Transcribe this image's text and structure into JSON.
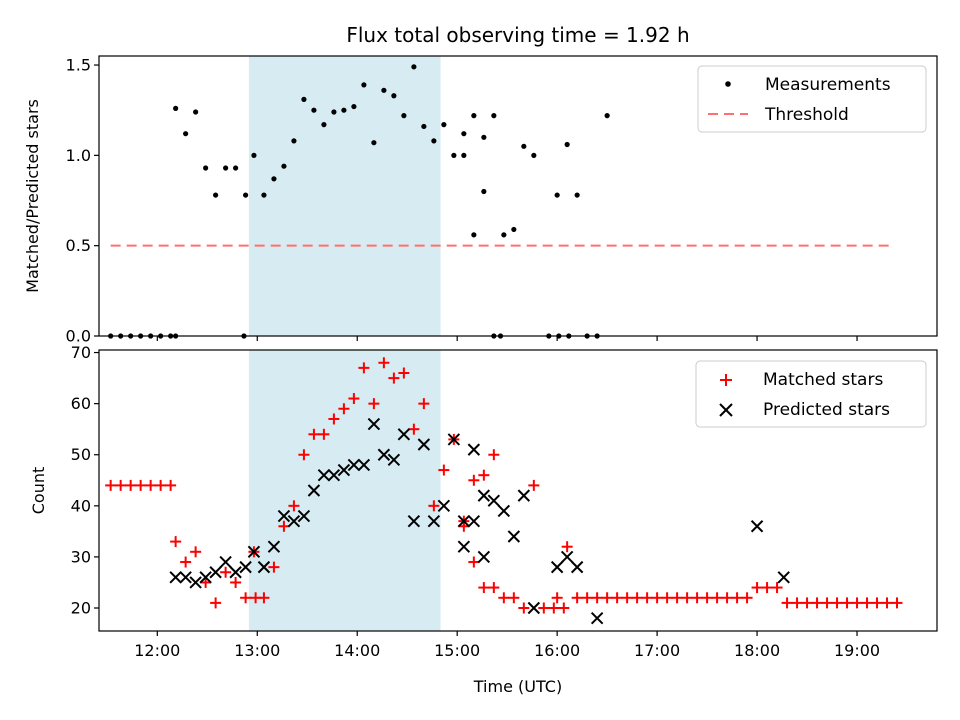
{
  "chart_data": [
    {
      "type": "scatter",
      "title": "Flux total observing time = 1.92 h",
      "xlabel": "",
      "ylabel": "Matched/Predicted stars",
      "ylim": [
        0,
        1.55
      ],
      "xlim": [
        "11:25",
        "19:48"
      ],
      "yticks": [
        0.0,
        0.5,
        1.0,
        1.5
      ],
      "ytick_labels": [
        "0.0",
        "0.5",
        "1.0",
        "1.5"
      ],
      "shaded_interval": {
        "start": "12:55",
        "end": "14:50",
        "color": "#add8e6"
      },
      "legend": {
        "position": "top-right",
        "entries": [
          "Measurements",
          "Threshold"
        ]
      },
      "series": [
        {
          "name": "Measurements",
          "marker": "dot",
          "color": "#000000",
          "points": [
            [
              "11:32",
              0
            ],
            [
              "11:38",
              0
            ],
            [
              "11:44",
              0
            ],
            [
              "11:50",
              0
            ],
            [
              "11:56",
              0
            ],
            [
              "12:02",
              0
            ],
            [
              "12:08",
              0
            ],
            [
              "12:11",
              0
            ],
            [
              "12:11",
              1.26
            ],
            [
              "12:17",
              1.12
            ],
            [
              "12:23",
              1.24
            ],
            [
              "12:29",
              0.93
            ],
            [
              "12:35",
              0.78
            ],
            [
              "12:41",
              0.93
            ],
            [
              "12:47",
              0.93
            ],
            [
              "12:53",
              0.78
            ],
            [
              "12:52",
              0
            ],
            [
              "12:58",
              1.0
            ],
            [
              "13:04",
              0.78
            ],
            [
              "13:10",
              0.87
            ],
            [
              "13:16",
              0.94
            ],
            [
              "13:22",
              1.08
            ],
            [
              "13:28",
              1.31
            ],
            [
              "13:34",
              1.25
            ],
            [
              "13:40",
              1.17
            ],
            [
              "13:46",
              1.24
            ],
            [
              "13:52",
              1.25
            ],
            [
              "13:58",
              1.27
            ],
            [
              "14:04",
              1.39
            ],
            [
              "14:10",
              1.07
            ],
            [
              "14:16",
              1.36
            ],
            [
              "14:22",
              1.33
            ],
            [
              "14:28",
              1.22
            ],
            [
              "14:34",
              1.49
            ],
            [
              "14:40",
              1.16
            ],
            [
              "14:46",
              1.08
            ],
            [
              "14:52",
              1.17
            ],
            [
              "14:58",
              1.0
            ],
            [
              "15:04",
              1.12
            ],
            [
              "15:10",
              0.56
            ],
            [
              "15:16",
              0.8
            ],
            [
              "15:22",
              0
            ],
            [
              "15:04",
              1.0
            ],
            [
              "15:10",
              1.22
            ],
            [
              "15:16",
              1.1
            ],
            [
              "15:22",
              1.22
            ],
            [
              "15:28",
              0.56
            ],
            [
              "15:26",
              0
            ],
            [
              "15:34",
              0.59
            ],
            [
              "15:40",
              1.05
            ],
            [
              "15:46",
              1.0
            ],
            [
              "15:55",
              0
            ],
            [
              "16:01",
              0
            ],
            [
              "16:07",
              0
            ],
            [
              "16:00",
              0.78
            ],
            [
              "16:06",
              1.06
            ],
            [
              "16:12",
              0.78
            ],
            [
              "16:18",
              0
            ],
            [
              "16:24",
              0
            ],
            [
              "16:30",
              1.22
            ]
          ]
        },
        {
          "name": "Threshold",
          "line_style": "dashed",
          "color": "#ff6f6f",
          "x": [
            "11:32",
            "19:22"
          ],
          "y": [
            0.5,
            0.5
          ]
        }
      ]
    },
    {
      "type": "scatter",
      "title": "",
      "xlabel": "Time (UTC)",
      "ylabel": "Count",
      "ylim": [
        15.5,
        70.5
      ],
      "xlim": [
        "11:25",
        "19:48"
      ],
      "yticks": [
        20,
        30,
        40,
        50,
        60,
        70
      ],
      "ytick_labels": [
        "20",
        "30",
        "40",
        "50",
        "60",
        "70"
      ],
      "xticks": [
        "12:00",
        "13:00",
        "14:00",
        "15:00",
        "16:00",
        "17:00",
        "18:00",
        "19:00"
      ],
      "shaded_interval": {
        "start": "12:55",
        "end": "14:50",
        "color": "#add8e6"
      },
      "legend": {
        "position": "top-right",
        "entries": [
          "Matched stars",
          "Predicted stars"
        ]
      },
      "series": [
        {
          "name": "Matched stars",
          "marker": "plus",
          "color": "#ff0000",
          "points": [
            [
              "11:32",
              44
            ],
            [
              "11:38",
              44
            ],
            [
              "11:44",
              44
            ],
            [
              "11:50",
              44
            ],
            [
              "11:56",
              44
            ],
            [
              "12:02",
              44
            ],
            [
              "12:08",
              44
            ],
            [
              "12:11",
              33
            ],
            [
              "12:17",
              29
            ],
            [
              "12:23",
              31
            ],
            [
              "12:29",
              25
            ],
            [
              "12:35",
              21
            ],
            [
              "12:41",
              27
            ],
            [
              "12:47",
              25
            ],
            [
              "12:53",
              22
            ],
            [
              "12:59",
              22
            ],
            [
              "12:58",
              31
            ],
            [
              "13:04",
              22
            ],
            [
              "13:10",
              28
            ],
            [
              "13:16",
              36
            ],
            [
              "13:22",
              40
            ],
            [
              "13:28",
              50
            ],
            [
              "13:34",
              54
            ],
            [
              "13:40",
              54
            ],
            [
              "13:46",
              57
            ],
            [
              "13:52",
              59
            ],
            [
              "13:58",
              61
            ],
            [
              "14:04",
              67
            ],
            [
              "14:10",
              60
            ],
            [
              "14:16",
              68
            ],
            [
              "14:22",
              65
            ],
            [
              "14:28",
              66
            ],
            [
              "14:34",
              55
            ],
            [
              "14:40",
              60
            ],
            [
              "14:46",
              40
            ],
            [
              "14:52",
              47
            ],
            [
              "14:58",
              53
            ],
            [
              "15:04",
              36
            ],
            [
              "15:10",
              29
            ],
            [
              "15:16",
              24
            ],
            [
              "15:22",
              24
            ],
            [
              "15:04",
              37
            ],
            [
              "15:10",
              45
            ],
            [
              "15:16",
              46
            ],
            [
              "15:22",
              50
            ],
            [
              "15:28",
              22
            ],
            [
              "15:34",
              22
            ],
            [
              "15:40",
              20
            ],
            [
              "15:46",
              44
            ],
            [
              "15:52",
              20
            ],
            [
              "15:58",
              20
            ],
            [
              "16:04",
              20
            ],
            [
              "16:00",
              22
            ],
            [
              "16:06",
              32
            ],
            [
              "16:12",
              22
            ],
            [
              "16:18",
              22
            ],
            [
              "16:24",
              22
            ],
            [
              "16:30",
              22
            ],
            [
              "16:36",
              22
            ],
            [
              "16:42",
              22
            ],
            [
              "16:48",
              22
            ],
            [
              "16:54",
              22
            ],
            [
              "17:00",
              22
            ],
            [
              "17:06",
              22
            ],
            [
              "17:12",
              22
            ],
            [
              "17:18",
              22
            ],
            [
              "17:24",
              22
            ],
            [
              "17:30",
              22
            ],
            [
              "17:36",
              22
            ],
            [
              "17:42",
              22
            ],
            [
              "17:48",
              22
            ],
            [
              "17:54",
              22
            ],
            [
              "18:00",
              24
            ],
            [
              "18:06",
              24
            ],
            [
              "18:12",
              24
            ],
            [
              "18:18",
              21
            ],
            [
              "18:24",
              21
            ],
            [
              "18:30",
              21
            ],
            [
              "18:36",
              21
            ],
            [
              "18:42",
              21
            ],
            [
              "18:48",
              21
            ],
            [
              "18:54",
              21
            ],
            [
              "19:00",
              21
            ],
            [
              "19:06",
              21
            ],
            [
              "19:12",
              21
            ],
            [
              "19:18",
              21
            ],
            [
              "19:24",
              21
            ]
          ]
        },
        {
          "name": "Predicted stars",
          "marker": "x",
          "color": "#000000",
          "points": [
            [
              "12:11",
              26
            ],
            [
              "12:17",
              26
            ],
            [
              "12:23",
              25
            ],
            [
              "12:29",
              26
            ],
            [
              "12:35",
              27
            ],
            [
              "12:41",
              29
            ],
            [
              "12:47",
              27
            ],
            [
              "12:53",
              28
            ],
            [
              "12:58",
              31
            ],
            [
              "13:04",
              28
            ],
            [
              "13:10",
              32
            ],
            [
              "13:16",
              38
            ],
            [
              "13:22",
              37
            ],
            [
              "13:28",
              38
            ],
            [
              "13:34",
              43
            ],
            [
              "13:40",
              46
            ],
            [
              "13:46",
              46
            ],
            [
              "13:52",
              47
            ],
            [
              "13:58",
              48
            ],
            [
              "14:04",
              48
            ],
            [
              "14:10",
              56
            ],
            [
              "14:16",
              50
            ],
            [
              "14:22",
              49
            ],
            [
              "14:28",
              54
            ],
            [
              "14:34",
              37
            ],
            [
              "14:40",
              52
            ],
            [
              "14:46",
              37
            ],
            [
              "14:52",
              40
            ],
            [
              "14:58",
              53
            ],
            [
              "15:04",
              32
            ],
            [
              "15:10",
              51
            ],
            [
              "15:16",
              30
            ],
            [
              "15:04",
              37
            ],
            [
              "15:10",
              37
            ],
            [
              "15:16",
              42
            ],
            [
              "15:22",
              41
            ],
            [
              "15:28",
              39
            ],
            [
              "15:34",
              34
            ],
            [
              "15:40",
              42
            ],
            [
              "15:46",
              20
            ],
            [
              "16:00",
              28
            ],
            [
              "16:06",
              30
            ],
            [
              "16:12",
              28
            ],
            [
              "16:24",
              18
            ],
            [
              "18:00",
              36
            ],
            [
              "18:16",
              26
            ]
          ]
        }
      ]
    }
  ]
}
